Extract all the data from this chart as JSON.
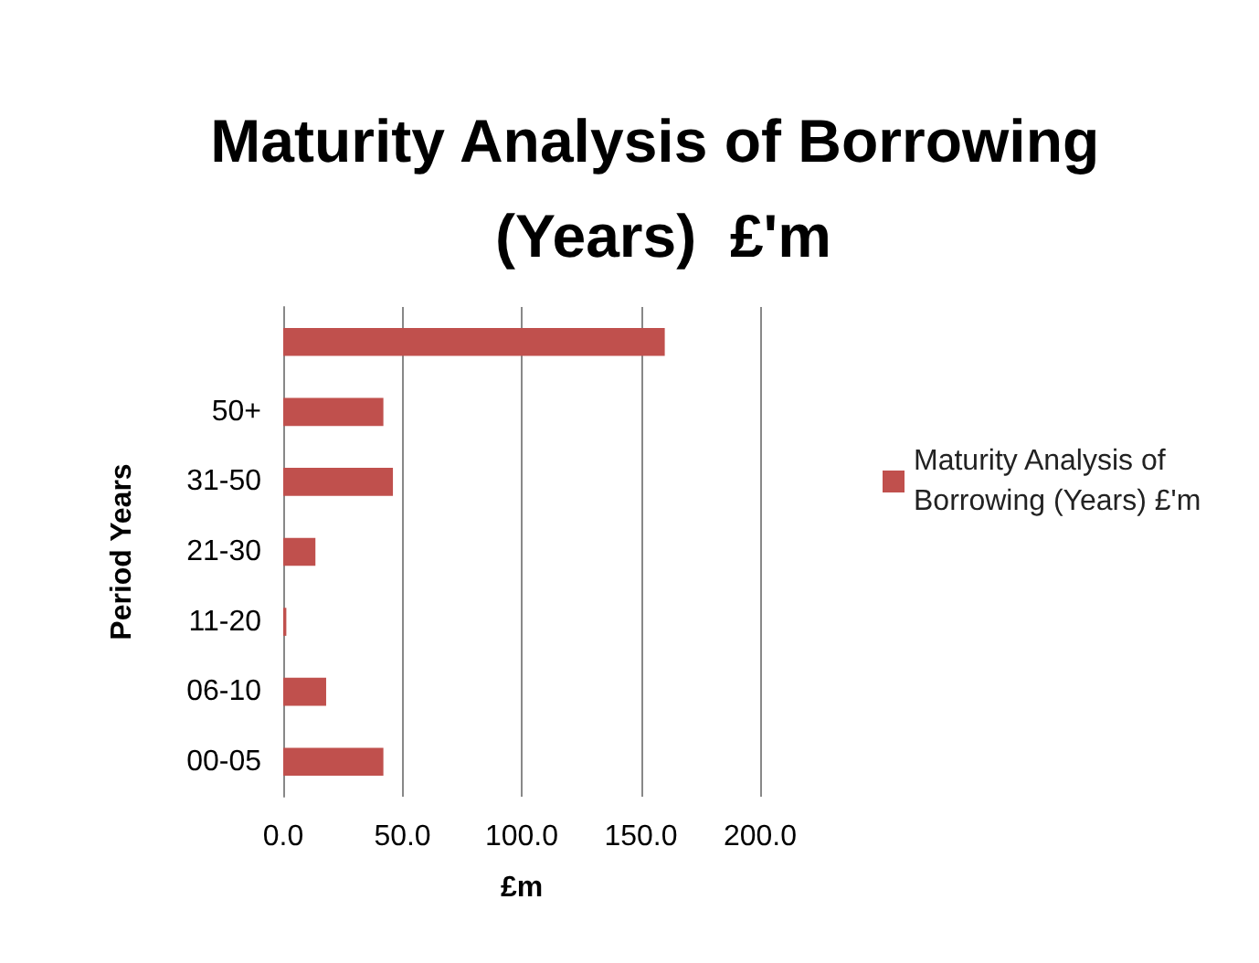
{
  "chart_data": {
    "type": "bar",
    "orientation": "horizontal",
    "title": "Maturity Analysis of Borrowing (Years)  £'m",
    "xlabel": "£m",
    "ylabel": "Period Years",
    "categories": [
      null,
      "50+",
      "31-50",
      "21-30",
      "11-20",
      "06-10",
      "00-05"
    ],
    "series": [
      {
        "name": "Maturity Analysis of Borrowing (Years) £'m",
        "color": "#c0504d",
        "values": [
          160,
          42,
          46,
          13.5,
          1.3,
          18,
          42
        ]
      }
    ],
    "xlim": [
      0,
      200
    ],
    "xticks": [
      {
        "value": 0,
        "label": "0.0"
      },
      {
        "value": 50,
        "label": "50.0"
      },
      {
        "value": 100,
        "label": "100.0"
      },
      {
        "value": 150,
        "label": "150.0"
      },
      {
        "value": 200,
        "label": "200.0"
      }
    ],
    "grid": "x",
    "legend": "right"
  }
}
